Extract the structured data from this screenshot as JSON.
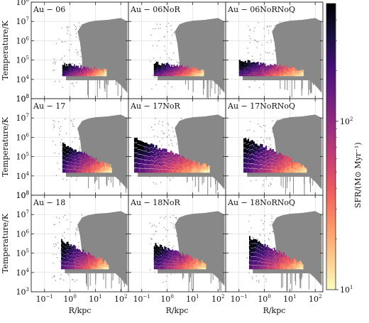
{
  "chart_data": {
    "type": "scatter",
    "xlabel": "R/kpc",
    "ylabel": "Temperature/K",
    "x_scale": "log",
    "y_scale": "log",
    "xlim": [
      0.03,
      200
    ],
    "ylim": [
      1000,
      100000000
    ],
    "grid": true,
    "x_ticks": [
      {
        "value": 0.1,
        "label": "10",
        "exp": "−1"
      },
      {
        "value": 1,
        "label": "10",
        "exp": "0"
      },
      {
        "value": 10,
        "label": "10",
        "exp": "1"
      },
      {
        "value": 100,
        "label": "10",
        "exp": "2"
      }
    ],
    "y_ticks": [
      {
        "value": 1000,
        "label": "10",
        "exp": "3"
      },
      {
        "value": 10000,
        "label": "10",
        "exp": "4"
      },
      {
        "value": 100000,
        "label": "10",
        "exp": "5"
      },
      {
        "value": 1000000,
        "label": "10",
        "exp": "6"
      },
      {
        "value": 10000000,
        "label": "10",
        "exp": "7"
      },
      {
        "value": 100000000,
        "label": "10",
        "exp": "8"
      }
    ],
    "colorbar": {
      "label": "SFR/(M⊙ Myr⁻¹)",
      "scale": "log",
      "range": [
        10,
        500
      ],
      "ticks": [
        {
          "value": 10,
          "label": "10",
          "exp": "1"
        },
        {
          "value": 100,
          "label": "10",
          "exp": "2"
        }
      ],
      "colormap": [
        "#fcfdbf",
        "#feca8d",
        "#fd9668",
        "#f1605d",
        "#cd4071",
        "#9e2f7f",
        "#721f81",
        "#440f76",
        "#180f3d",
        "#000004"
      ]
    },
    "panels": [
      {
        "title": "Au − 06",
        "row": 0,
        "col": 0,
        "sf_onset_R": 0.5,
        "sf_inner_T": 50000,
        "sf_outer_R": 25
      },
      {
        "title": "Au − 06NoR",
        "row": 0,
        "col": 1,
        "sf_onset_R": 0.3,
        "sf_inner_T": 60000,
        "sf_outer_R": 25
      },
      {
        "title": "Au − 06NoRNoQ",
        "row": 0,
        "col": 2,
        "sf_onset_R": 0.1,
        "sf_inner_T": 80000,
        "sf_outer_R": 30
      },
      {
        "title": "Au − 17",
        "row": 1,
        "col": 0,
        "sf_onset_R": 0.5,
        "sf_inner_T": 300000,
        "sf_outer_R": 40
      },
      {
        "title": "Au − 17NoR",
        "row": 1,
        "col": 1,
        "sf_onset_R": 0.05,
        "sf_inner_T": 500000,
        "sf_outer_R": 40
      },
      {
        "title": "Au − 17NoRNoQ",
        "row": 1,
        "col": 2,
        "sf_onset_R": 0.15,
        "sf_inner_T": 600000,
        "sf_outer_R": 40
      },
      {
        "title": "Au − 18",
        "row": 2,
        "col": 0,
        "sf_onset_R": 0.45,
        "sf_inner_T": 300000,
        "sf_outer_R": 30
      },
      {
        "title": "Au − 18NoR",
        "row": 2,
        "col": 1,
        "sf_onset_R": 0.3,
        "sf_inner_T": 200000,
        "sf_outer_R": 30
      },
      {
        "title": "Au − 18NoRNoQ",
        "row": 2,
        "col": 2,
        "sf_onset_R": 0.25,
        "sf_inner_T": 400000,
        "sf_outer_R": 30
      }
    ],
    "colors": {
      "non_sf_gas": "#888888",
      "grid": "#d9d9d9",
      "axis": "#222222"
    }
  }
}
